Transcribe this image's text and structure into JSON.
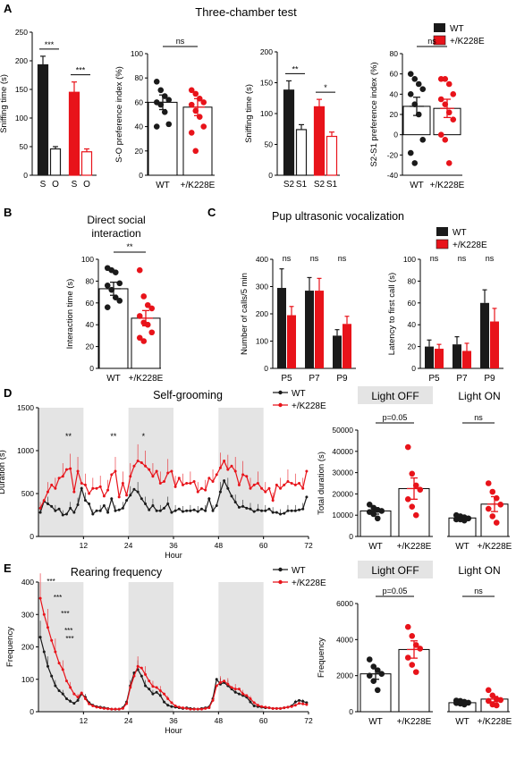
{
  "colors": {
    "wt": "#1a1a1a",
    "mut": "#e8131a",
    "mut_light": "#f07a7a",
    "shade": "#e4e4e4"
  },
  "panels": {
    "A": {
      "letter": "A",
      "title": "Three-chamber test"
    },
    "B": {
      "letter": "B",
      "title_line1": "Direct social",
      "title_line2": "interaction"
    },
    "C": {
      "letter": "C",
      "title": "Pup ultrasonic vocalization"
    },
    "D": {
      "letter": "D",
      "title": "Self-grooming"
    },
    "E": {
      "letter": "E",
      "title": "Rearing frequency"
    }
  },
  "legend": {
    "wt": "WT",
    "mut": "+/K228E"
  },
  "box_labels": {
    "off": "Light OFF",
    "on": "Light ON"
  },
  "chart_data": [
    {
      "id": "A1",
      "type": "bar",
      "ylabel": "Sniffing time (s)",
      "ylim": [
        0,
        250
      ],
      "yticks": [
        0,
        50,
        100,
        150,
        200,
        250
      ],
      "categories": [
        "S",
        "O",
        "S",
        "O"
      ],
      "values": [
        193,
        46,
        145,
        41
      ],
      "errors": [
        15,
        4,
        18,
        5
      ],
      "annotations": [
        {
          "text": "***",
          "pair": [
            0,
            1
          ]
        },
        {
          "text": "***",
          "pair": [
            2,
            3
          ]
        }
      ]
    },
    {
      "id": "A2",
      "type": "bar",
      "ylabel": "S-O preference index (%)",
      "ylim": [
        0,
        100
      ],
      "yticks": [
        0,
        20,
        40,
        60,
        80,
        100
      ],
      "categories": [
        "WT",
        "+/K228E"
      ],
      "values": [
        60,
        56
      ],
      "errors": [
        6,
        7
      ],
      "points": [
        [
          77,
          70,
          65,
          62,
          60,
          58,
          52,
          42,
          40
        ],
        [
          70,
          67,
          63,
          60,
          58,
          53,
          48,
          40,
          35,
          20
        ]
      ],
      "annotations": [
        {
          "text": "ns",
          "pair": [
            0,
            1
          ]
        }
      ]
    },
    {
      "id": "A3",
      "type": "bar",
      "ylabel": "Sniffing time (s)",
      "ylim": [
        0,
        200
      ],
      "yticks": [
        0,
        50,
        100,
        150,
        200
      ],
      "categories": [
        "S2",
        "S1",
        "S2",
        "S1"
      ],
      "values": [
        138,
        74,
        111,
        63
      ],
      "errors": [
        15,
        8,
        12,
        7
      ],
      "annotations": [
        {
          "text": "**",
          "pair": [
            0,
            1
          ]
        },
        {
          "text": "*",
          "pair": [
            2,
            3
          ]
        }
      ]
    },
    {
      "id": "A4",
      "type": "bar",
      "ylabel": "S2-S1 preference index (%)",
      "ylim": [
        -40,
        80
      ],
      "yticks": [
        -40,
        -20,
        0,
        20,
        40,
        60,
        80
      ],
      "categories": [
        "WT",
        "+/K228E"
      ],
      "values": [
        28,
        26
      ],
      "errors": [
        9,
        9
      ],
      "points": [
        [
          60,
          55,
          50,
          45,
          40,
          30,
          20,
          -5,
          -18,
          -28
        ],
        [
          55,
          55,
          50,
          40,
          35,
          30,
          22,
          15,
          0,
          -5,
          -28
        ]
      ],
      "annotations": [
        {
          "text": "ns",
          "pair": [
            0,
            1
          ]
        }
      ]
    },
    {
      "id": "B",
      "type": "bar",
      "ylabel": "Interaction time (s)",
      "ylim": [
        0,
        100
      ],
      "yticks": [
        0,
        20,
        40,
        60,
        80,
        100
      ],
      "categories": [
        "WT",
        "+/K228E"
      ],
      "values": [
        73,
        46
      ],
      "errors": [
        6,
        7
      ],
      "points": [
        [
          92,
          90,
          88,
          78,
          76,
          72,
          65,
          62,
          56
        ],
        [
          90,
          66,
          58,
          55,
          48,
          42,
          40,
          33,
          28,
          25
        ]
      ],
      "annotations": [
        {
          "text": "**",
          "pair": [
            0,
            1
          ]
        }
      ]
    },
    {
      "id": "C1",
      "type": "bar",
      "ylabel": "Number of calls/5 min",
      "ylim": [
        0,
        400
      ],
      "yticks": [
        0,
        100,
        200,
        300,
        400
      ],
      "categories": [
        "P5",
        "P7",
        "P9"
      ],
      "series": [
        {
          "name": "WT",
          "values": [
            295,
            285,
            120
          ],
          "errors": [
            70,
            48,
            22
          ]
        },
        {
          "name": "+/K228E",
          "values": [
            195,
            285,
            163
          ],
          "errors": [
            32,
            45,
            28
          ]
        }
      ],
      "annotations": [
        "ns",
        "ns",
        "ns"
      ]
    },
    {
      "id": "C2",
      "type": "bar",
      "ylabel": "Latency to first call (s)",
      "ylim": [
        0,
        100
      ],
      "yticks": [
        0,
        20,
        40,
        60,
        80,
        100
      ],
      "categories": [
        "P5",
        "P7",
        "P9"
      ],
      "series": [
        {
          "name": "WT",
          "values": [
            20,
            22,
            60
          ],
          "errors": [
            6,
            7,
            12
          ]
        },
        {
          "name": "+/K228E",
          "values": [
            18,
            16,
            43
          ],
          "errors": [
            4,
            7,
            12
          ]
        }
      ],
      "annotations": [
        "ns",
        "ns",
        "ns"
      ]
    },
    {
      "id": "D1",
      "type": "line",
      "xlabel": "Hour",
      "ylabel": "Duration (s)",
      "xlim": [
        0,
        72
      ],
      "ylim": [
        0,
        1500
      ],
      "xticks": [
        12,
        24,
        36,
        48,
        60,
        72
      ],
      "yticks": [
        0,
        500,
        1000,
        1500
      ],
      "shaded_hours": [
        [
          0,
          12
        ],
        [
          24,
          36
        ],
        [
          48,
          60
        ]
      ],
      "series": [
        {
          "name": "WT",
          "values": [
            280,
            410,
            380,
            350,
            300,
            320,
            250,
            260,
            330,
            280,
            370,
            560,
            420,
            380,
            260,
            300,
            300,
            360,
            280,
            440,
            300,
            310,
            330,
            420,
            480,
            550,
            520,
            440,
            380,
            310,
            360,
            300,
            300,
            330,
            380,
            280,
            300,
            320,
            290,
            300,
            300,
            310,
            290,
            320,
            300,
            440,
            300,
            360,
            520,
            650,
            560,
            470,
            400,
            340,
            350,
            330,
            320,
            290,
            310,
            300,
            300,
            320,
            280,
            280,
            260,
            270,
            300,
            300,
            300,
            310,
            320,
            460
          ]
        },
        {
          "name": "+/K228E",
          "values": [
            330,
            420,
            520,
            600,
            560,
            680,
            700,
            780,
            790,
            520,
            760,
            620,
            600,
            500,
            560,
            560,
            580,
            470,
            540,
            720,
            760,
            460,
            620,
            480,
            700,
            820,
            880,
            860,
            820,
            780,
            700,
            760,
            620,
            640,
            740,
            760,
            580,
            680,
            600,
            620,
            620,
            640,
            520,
            560,
            540,
            680,
            640,
            720,
            800,
            880,
            780,
            820,
            760,
            600,
            720,
            700,
            560,
            600,
            620,
            560,
            520,
            560,
            420,
            600,
            560,
            600,
            640,
            620,
            600,
            620,
            560,
            760
          ]
        }
      ],
      "annotations": [
        {
          "text": "**",
          "x": 8
        },
        {
          "text": "**",
          "x": 20
        },
        {
          "text": "*",
          "x": 28
        }
      ]
    },
    {
      "id": "D2",
      "type": "bar",
      "ylabel": "Total duration (s)",
      "ylim": [
        0,
        50000
      ],
      "yticks": [
        0,
        10000,
        20000,
        30000,
        40000,
        50000
      ],
      "categories": [
        "WT",
        "+/K228E"
      ],
      "values": [
        12000,
        22500
      ],
      "errors": [
        1500,
        5000
      ],
      "points": [
        [
          15000,
          13500,
          12500,
          12000,
          11500,
          10500,
          8500
        ],
        [
          42000,
          29500,
          24000,
          22000,
          17500,
          14000,
          10000
        ]
      ],
      "annotations": [
        {
          "text": "p=0.05",
          "pair": [
            0,
            1
          ]
        }
      ]
    },
    {
      "id": "D3",
      "type": "bar",
      "ylim": [
        0,
        50000
      ],
      "categories": [
        "WT",
        "+/K228E"
      ],
      "values": [
        8700,
        15200
      ],
      "errors": [
        900,
        3500
      ],
      "points": [
        [
          10000,
          9500,
          9000,
          8500,
          8000,
          8000,
          7500
        ],
        [
          25000,
          21000,
          18000,
          15000,
          13000,
          9500,
          6500
        ]
      ],
      "annotations": [
        {
          "text": "ns",
          "pair": [
            0,
            1
          ]
        }
      ]
    },
    {
      "id": "E1",
      "type": "line",
      "xlabel": "Hour",
      "ylabel": "Frequency",
      "xlim": [
        0,
        72
      ],
      "ylim": [
        0,
        400
      ],
      "xticks": [
        12,
        24,
        36,
        48,
        60,
        72
      ],
      "yticks": [
        0,
        100,
        200,
        300,
        400
      ],
      "shaded_hours": [
        [
          0,
          12
        ],
        [
          24,
          36
        ],
        [
          48,
          60
        ]
      ],
      "series": [
        {
          "name": "WT",
          "values": [
            230,
            185,
            140,
            110,
            80,
            65,
            55,
            40,
            32,
            26,
            35,
            55,
            45,
            28,
            20,
            16,
            14,
            12,
            10,
            8,
            8,
            8,
            12,
            30,
            80,
            120,
            130,
            110,
            80,
            70,
            55,
            60,
            50,
            30,
            20,
            16,
            14,
            12,
            10,
            12,
            10,
            9,
            8,
            10,
            12,
            15,
            40,
            100,
            85,
            90,
            80,
            70,
            60,
            55,
            50,
            45,
            30,
            18,
            16,
            14,
            12,
            12,
            10,
            10,
            10,
            12,
            14,
            18,
            30,
            35,
            32,
            28
          ]
        },
        {
          "name": "+/K228E",
          "values": [
            350,
            300,
            260,
            220,
            185,
            150,
            130,
            95,
            75,
            55,
            45,
            58,
            40,
            24,
            18,
            14,
            12,
            10,
            9,
            8,
            8,
            8,
            10,
            25,
            75,
            110,
            140,
            135,
            115,
            95,
            78,
            75,
            65,
            55,
            40,
            28,
            18,
            14,
            12,
            10,
            8,
            8,
            8,
            8,
            10,
            12,
            35,
            80,
            90,
            95,
            85,
            75,
            70,
            70,
            55,
            50,
            40,
            28,
            20,
            16,
            14,
            12,
            10,
            10,
            10,
            12,
            14,
            16,
            20,
            26,
            24,
            22
          ]
        }
      ],
      "annotations": [
        "***",
        "***",
        "***",
        "***",
        "***"
      ]
    },
    {
      "id": "E2",
      "type": "bar",
      "ylabel": "Frequency",
      "ylim": [
        0,
        6000
      ],
      "yticks": [
        0,
        2000,
        4000,
        6000
      ],
      "categories": [
        "WT",
        "+/K228E"
      ],
      "values": [
        2100,
        3450
      ],
      "errors": [
        300,
        480
      ],
      "points": [
        [
          2900,
          2500,
          2300,
          2100,
          2000,
          1700,
          1200
        ],
        [
          4700,
          4200,
          3700,
          3500,
          3000,
          2600,
          2200
        ]
      ],
      "annotations": [
        {
          "text": "p=0.05",
          "pair": [
            0,
            1
          ]
        }
      ]
    },
    {
      "id": "E3",
      "type": "bar",
      "ylim": [
        0,
        6000
      ],
      "categories": [
        "WT",
        "+/K228E"
      ],
      "values": [
        500,
        700
      ],
      "errors": [
        60,
        150
      ],
      "points": [
        [
          620,
          600,
          550,
          500,
          480,
          450,
          400
        ],
        [
          1200,
          900,
          700,
          650,
          600,
          400,
          350
        ]
      ],
      "annotations": [
        {
          "text": "ns",
          "pair": [
            0,
            1
          ]
        }
      ]
    }
  ]
}
